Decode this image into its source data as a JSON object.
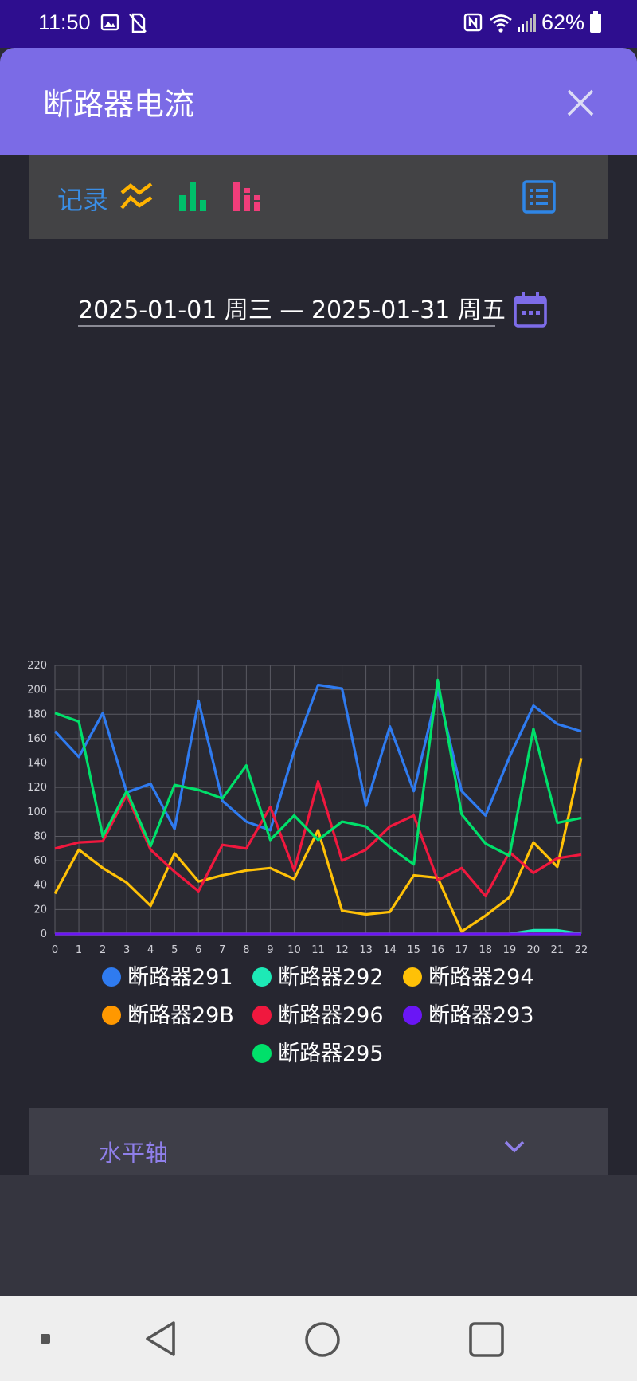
{
  "status": {
    "time": "11:50",
    "battery": "62%"
  },
  "dialog": {
    "title": "断路器电流",
    "close_icon": "close-icon"
  },
  "toolbar": {
    "record_label": "记录",
    "icons": [
      "line-chart-icon",
      "bar-chart-icon",
      "grouped-bar-chart-icon",
      "list-icon"
    ]
  },
  "date_range": {
    "text": "2025-01-01 周三 — 2025-01-31 周五",
    "icon": "calendar-icon"
  },
  "chart_data": {
    "type": "line",
    "x": [
      0,
      1,
      2,
      3,
      4,
      5,
      6,
      7,
      8,
      9,
      10,
      11,
      12,
      13,
      14,
      15,
      16,
      17,
      18,
      19,
      20,
      21,
      22
    ],
    "ylim": [
      0,
      220
    ],
    "yticks": [
      0,
      20,
      40,
      60,
      80,
      100,
      120,
      140,
      160,
      180,
      200,
      220
    ],
    "grid": true,
    "legend_position": "bottom",
    "series": [
      {
        "name": "断路器291",
        "color": "#2f7bf0",
        "values": [
          166,
          145,
          181,
          116,
          123,
          86,
          191,
          109,
          92,
          85,
          150,
          204,
          201,
          105,
          170,
          117,
          200,
          117,
          97,
          145,
          187,
          172,
          166
        ]
      },
      {
        "name": "断路器292",
        "color": "#1de9b6",
        "values": [
          0,
          0,
          0,
          0,
          0,
          0,
          0,
          0,
          0,
          0,
          0,
          0,
          0,
          0,
          0,
          0,
          0,
          0,
          0,
          0,
          3,
          3,
          0
        ]
      },
      {
        "name": "断路器294",
        "color": "#ffc107",
        "values": [
          33,
          69,
          54,
          42,
          23,
          66,
          43,
          48,
          52,
          54,
          45,
          85,
          19,
          16,
          18,
          48,
          46,
          2,
          15,
          30,
          75,
          55,
          144
        ]
      },
      {
        "name": "断路器29B",
        "color": "#ff9800",
        "values": [
          0,
          0,
          0,
          0,
          0,
          0,
          0,
          0,
          0,
          0,
          0,
          0,
          0,
          0,
          0,
          0,
          0,
          0,
          0,
          0,
          0,
          0,
          0
        ]
      },
      {
        "name": "断路器296",
        "color": "#f0183e",
        "values": [
          70,
          75,
          76,
          114,
          69,
          51,
          35,
          73,
          70,
          104,
          52,
          125,
          60,
          69,
          88,
          97,
          44,
          54,
          31,
          67,
          50,
          62,
          65
        ]
      },
      {
        "name": "断路器293",
        "color": "#6a16f5",
        "values": [
          0,
          0,
          0,
          0,
          0,
          0,
          0,
          0,
          0,
          0,
          0,
          0,
          0,
          0,
          0,
          0,
          0,
          0,
          0,
          0,
          0,
          0,
          0
        ]
      },
      {
        "name": "断路器295",
        "color": "#00e06a",
        "values": [
          181,
          174,
          80,
          117,
          72,
          122,
          118,
          111,
          138,
          77,
          97,
          77,
          92,
          88,
          71,
          57,
          208,
          98,
          74,
          64,
          168,
          91,
          95
        ]
      }
    ]
  },
  "horizontal_axis": {
    "label": "水平轴",
    "icon": "chevron-down-icon"
  }
}
